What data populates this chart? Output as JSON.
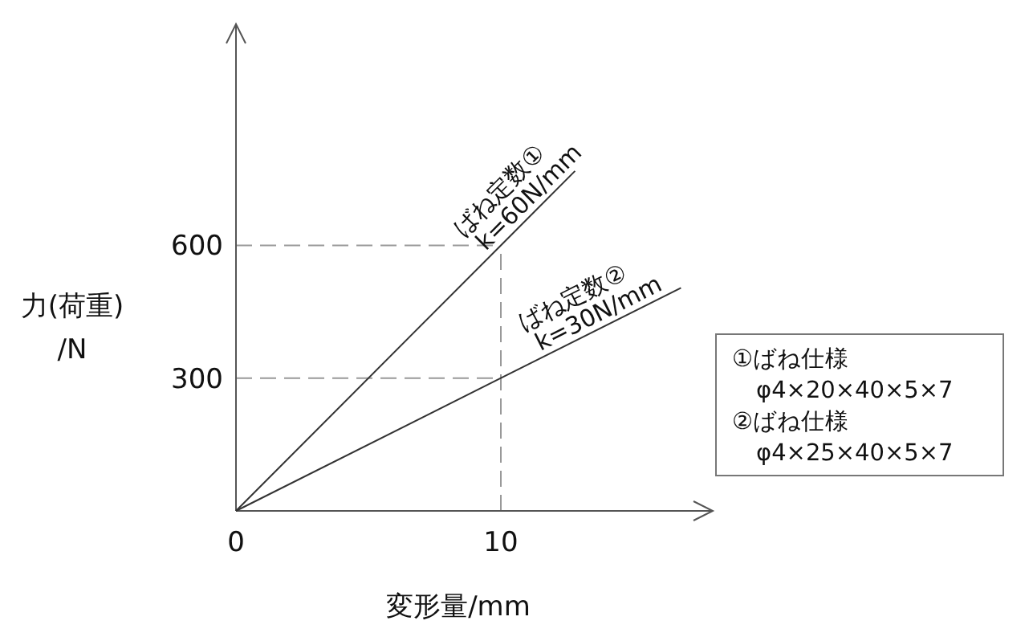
{
  "chart_data": {
    "type": "line",
    "xlabel": "変形量/mm",
    "ylabel": "力(荷重)/N",
    "xlim": [
      0,
      18
    ],
    "ylim": [
      0,
      1100
    ],
    "xticks": [
      0,
      10
    ],
    "yticks": [
      300,
      600
    ],
    "series": [
      {
        "name": "ばね定数①",
        "color": "#333333",
        "x": [
          0,
          10,
          12.8
        ],
        "values": [
          0,
          600,
          768
        ]
      },
      {
        "name": "ばね定数②",
        "color": "#333333",
        "x": [
          0,
          10,
          16.8
        ],
        "values": [
          0,
          300,
          504
        ]
      }
    ],
    "annotations": [
      {
        "text": "k=60N/mm",
        "x": 9.6,
        "y": 576
      },
      {
        "text": "k=30N/mm",
        "x": 11.6,
        "y": 348
      },
      "①ばね仕様",
      "φ4×20×40×5×7",
      "②ばね仕様",
      "φ4×25×40×5×7"
    ],
    "ref_lines": [
      {
        "axis": "y",
        "value": 600,
        "color": "#999999",
        "line_style": "dashed"
      },
      {
        "axis": "y",
        "value": 300,
        "color": "#999999",
        "line_style": "dashed"
      },
      {
        "axis": "x",
        "value": 10,
        "color": "#999999",
        "line_style": "dashed"
      }
    ],
    "grid": false,
    "marker": "none",
    "line_style": "solid"
  }
}
